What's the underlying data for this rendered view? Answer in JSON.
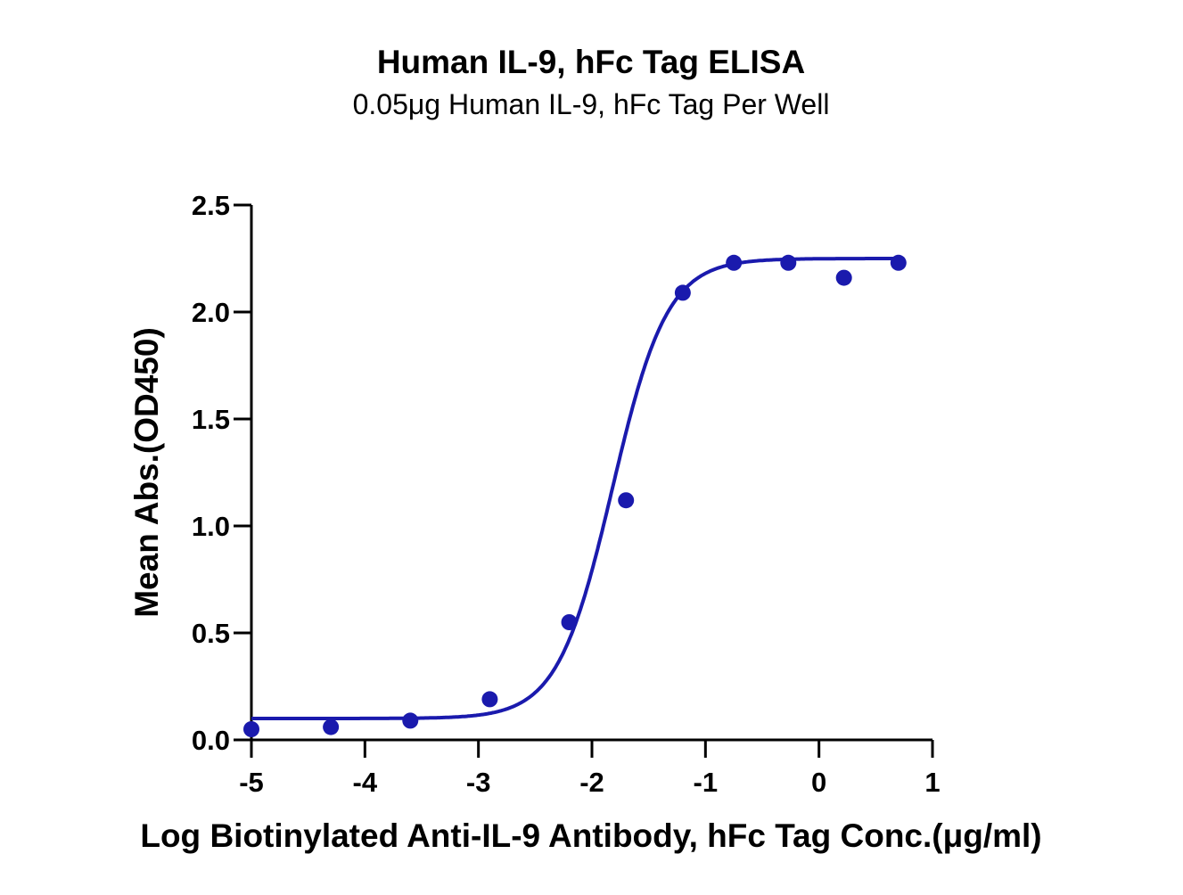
{
  "chart_data": {
    "type": "scatter",
    "title": "Human IL-9, hFc Tag ELISA",
    "subtitle": "0.05μg Human IL-9, hFc Tag Per Well",
    "xlabel": "Log Biotinylated Anti-IL-9 Antibody, hFc Tag Conc.(μg/ml)",
    "ylabel": "Mean Abs.(OD450)",
    "xlim": [
      -5,
      1
    ],
    "ylim": [
      0,
      2.5
    ],
    "x_ticks": [
      "-5",
      "-4",
      "-3",
      "-2",
      "-1",
      "0",
      "1"
    ],
    "y_ticks": [
      "0.0",
      "0.5",
      "1.0",
      "1.5",
      "2.0",
      "2.5"
    ],
    "grid": false,
    "colors": {
      "series": "#1a1aad",
      "axis": "#000000"
    },
    "series": [
      {
        "points": [
          {
            "x": -5.0,
            "y": 0.05
          },
          {
            "x": -4.3,
            "y": 0.06
          },
          {
            "x": -3.6,
            "y": 0.09
          },
          {
            "x": -2.9,
            "y": 0.19
          },
          {
            "x": -2.2,
            "y": 0.55
          },
          {
            "x": -1.7,
            "y": 1.12
          },
          {
            "x": -1.2,
            "y": 2.09
          },
          {
            "x": -0.75,
            "y": 2.23
          },
          {
            "x": -0.27,
            "y": 2.23
          },
          {
            "x": 0.22,
            "y": 2.16
          },
          {
            "x": 0.7,
            "y": 2.23
          }
        ],
        "fit": {
          "model": "4PL",
          "bottom": 0.1,
          "top": 2.25,
          "log_ec50": -1.82,
          "hill_slope": 1.8
        }
      }
    ]
  }
}
